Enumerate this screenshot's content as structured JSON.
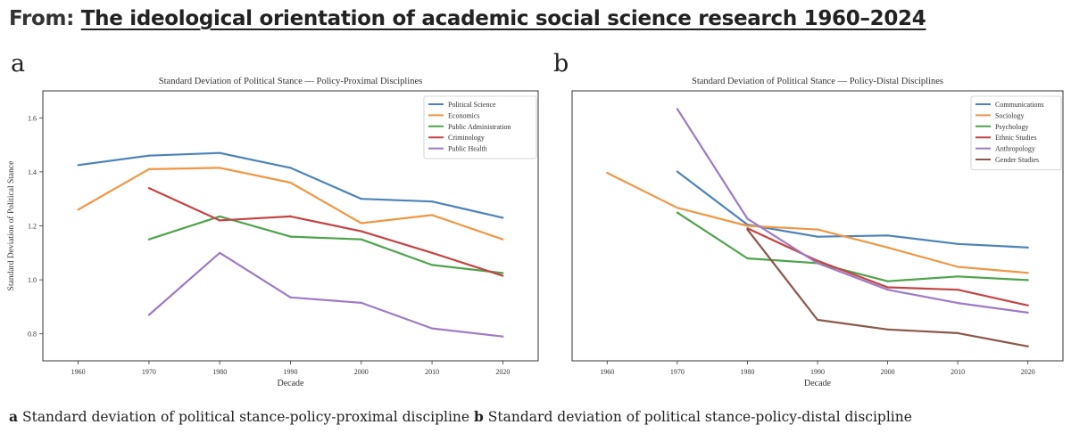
{
  "header": {
    "prefix": "From: ",
    "link_text": "The ideological orientation of academic social science research 1960–2024"
  },
  "panels": [
    {
      "letter": "a"
    },
    {
      "letter": "b"
    }
  ],
  "caption": {
    "a_letter": "a",
    "a_text": " Standard deviation of political stance-policy-proximal discipline ",
    "b_letter": "b",
    "b_text": " Standard deviation of political stance-policy-distal discipline"
  },
  "chart_data": [
    {
      "type": "line",
      "title": "Standard Deviation of Political Stance — Policy-Proximal Disciplines",
      "xlabel": "Decade",
      "ylabel": "Standard Deviation of Political Stance",
      "xlim": [
        1955,
        2025
      ],
      "ylim": [
        0.7,
        1.7
      ],
      "xticks": [
        1960,
        1970,
        1980,
        1990,
        2000,
        2010,
        2020
      ],
      "yticks": [
        0.8,
        1.0,
        1.2,
        1.4,
        1.6
      ],
      "ytick_labels": [
        "0.8",
        "1.0",
        "1.2",
        "1.4",
        "1.6"
      ],
      "legend_position": "top-right",
      "series": [
        {
          "name": "Political Science",
          "color": "#4c83b9",
          "x": [
            1960,
            1970,
            1980,
            1990,
            2000,
            2010,
            2020
          ],
          "values": [
            1.425,
            1.46,
            1.47,
            1.415,
            1.3,
            1.29,
            1.23
          ]
        },
        {
          "name": "Economics",
          "color": "#ef9744",
          "x": [
            1960,
            1970,
            1980,
            1990,
            2000,
            2010,
            2020
          ],
          "values": [
            1.26,
            1.41,
            1.415,
            1.36,
            1.21,
            1.24,
            1.15
          ]
        },
        {
          "name": "Public Administration",
          "color": "#4fa34c",
          "x": [
            1970,
            1980,
            1990,
            2000,
            2010,
            2020
          ],
          "values": [
            1.15,
            1.235,
            1.16,
            1.15,
            1.055,
            1.025
          ]
        },
        {
          "name": "Criminology",
          "color": "#c64343",
          "x": [
            1970,
            1980,
            1990,
            2000,
            2010,
            2020
          ],
          "values": [
            1.34,
            1.22,
            1.235,
            1.18,
            1.1,
            1.015
          ]
        },
        {
          "name": "Public Health",
          "color": "#9d7bc6",
          "x": [
            1970,
            1980,
            1990,
            2000,
            2010,
            2020
          ],
          "values": [
            0.87,
            1.1,
            0.935,
            0.915,
            0.82,
            0.79
          ]
        }
      ]
    },
    {
      "type": "line",
      "title": "Standard Deviation of Political Stance — Policy-Distal Disciplines",
      "xlabel": "Decade",
      "ylabel": "",
      "xlim": [
        1955,
        2025
      ],
      "ylim": [
        0.6,
        1.72
      ],
      "xticks": [
        1960,
        1970,
        1980,
        1990,
        2000,
        2010,
        2020
      ],
      "yticks": [],
      "ytick_labels": [],
      "legend_position": "top-right",
      "series": [
        {
          "name": "Communications",
          "color": "#4c83b9",
          "x": [
            1970,
            1980,
            1990,
            2000,
            2010,
            2020
          ],
          "values": [
            1.385,
            1.165,
            1.115,
            1.12,
            1.085,
            1.07
          ]
        },
        {
          "name": "Sociology",
          "color": "#ef9744",
          "x": [
            1960,
            1970,
            1980,
            1990,
            2000,
            2010,
            2020
          ],
          "values": [
            1.38,
            1.235,
            1.16,
            1.145,
            1.07,
            0.99,
            0.965
          ]
        },
        {
          "name": "Psychology",
          "color": "#4fa34c",
          "x": [
            1970,
            1980,
            1990,
            2000,
            2010,
            2020
          ],
          "values": [
            1.215,
            1.025,
            1.005,
            0.93,
            0.95,
            0.935
          ]
        },
        {
          "name": "Ethnic Studies",
          "color": "#c64343",
          "x": [
            1980,
            1990,
            2000,
            2010,
            2020
          ],
          "values": [
            1.15,
            1.015,
            0.905,
            0.895,
            0.83
          ]
        },
        {
          "name": "Anthropology",
          "color": "#9d7bc6",
          "x": [
            1970,
            1980,
            1990,
            2000,
            2010,
            2020
          ],
          "values": [
            1.645,
            1.19,
            1.005,
            0.895,
            0.84,
            0.8
          ]
        },
        {
          "name": "Gender Studies",
          "color": "#8c564b",
          "x": [
            1980,
            1990,
            2000,
            2010,
            2020
          ],
          "values": [
            1.145,
            0.77,
            0.73,
            0.715,
            0.66
          ]
        }
      ]
    }
  ]
}
